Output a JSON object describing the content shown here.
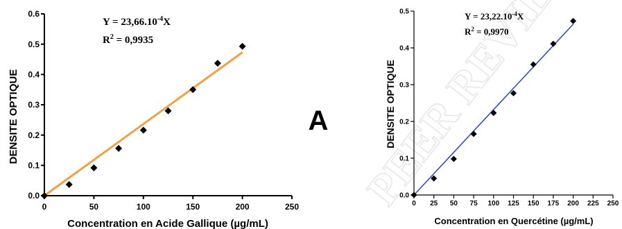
{
  "panel_letter": "A",
  "watermark": "PEER REVIEW",
  "colors": {
    "fit_left": "#F4A040",
    "fit_right": "#2A3FD8",
    "points": "#000000",
    "axis": "#000000",
    "watermark": "#d0d0d0"
  },
  "chart_data": [
    {
      "type": "scatter",
      "title": "",
      "xlabel": "Concentration en Acide Gallique (µg/mL)",
      "ylabel": "DENSITE OPTIQUE",
      "xlim": [
        0,
        250
      ],
      "ylim": [
        0,
        0.6
      ],
      "xticks": [
        "0",
        "50",
        "100",
        "150",
        "200",
        "250"
      ],
      "xtick_values": [
        0,
        50,
        100,
        150,
        200,
        250
      ],
      "yticks": [
        "0.0",
        "0.1",
        "0.2",
        "0.3",
        "0.4",
        "0.5",
        "0.6"
      ],
      "ytick_values": [
        0,
        0.1,
        0.2,
        0.3,
        0.4,
        0.5,
        0.6
      ],
      "x": [
        0,
        25,
        50,
        75,
        100,
        125,
        150,
        175,
        200
      ],
      "y": [
        0.0,
        0.037,
        0.092,
        0.156,
        0.216,
        0.28,
        0.35,
        0.437,
        0.493
      ],
      "fit": {
        "slope": 0.002366,
        "x_range": [
          0,
          200
        ]
      },
      "equation": {
        "y_part": "Y = 23,66.10",
        "exponent": "-4",
        "x_part": "X",
        "r2_label": "R",
        "r2_exp": "2",
        "r2_value": " = 0,9935"
      },
      "grid": false
    },
    {
      "type": "scatter",
      "title": "",
      "xlabel": "Concentration en Quercétine (µg/mL)",
      "ylabel": "DENSITE OPTIQUE",
      "xlim": [
        0,
        250
      ],
      "ylim": [
        0,
        0.5
      ],
      "xticks": [
        "0",
        "25",
        "50",
        "75",
        "100",
        "125",
        "150",
        "175",
        "200",
        "225",
        "250"
      ],
      "xtick_values": [
        0,
        25,
        50,
        75,
        100,
        125,
        150,
        175,
        200,
        225,
        250
      ],
      "yticks": [
        "0.0",
        "0.1",
        "0.2",
        "0.3",
        "0.4",
        "0.5"
      ],
      "ytick_values": [
        0,
        0.1,
        0.2,
        0.3,
        0.4,
        0.5
      ],
      "x": [
        0,
        25,
        50,
        75,
        100,
        125,
        150,
        175,
        200
      ],
      "y": [
        0.0,
        0.045,
        0.098,
        0.166,
        0.223,
        0.277,
        0.355,
        0.411,
        0.473
      ],
      "fit": {
        "slope": 0.002322,
        "x_range": [
          0,
          200
        ]
      },
      "equation": {
        "y_part": "Y = 23,22.10",
        "exponent": "-4",
        "x_part": "X",
        "r2_label": "R",
        "r2_exp": "2",
        "r2_value": " = 0,9970"
      },
      "grid": false
    }
  ]
}
